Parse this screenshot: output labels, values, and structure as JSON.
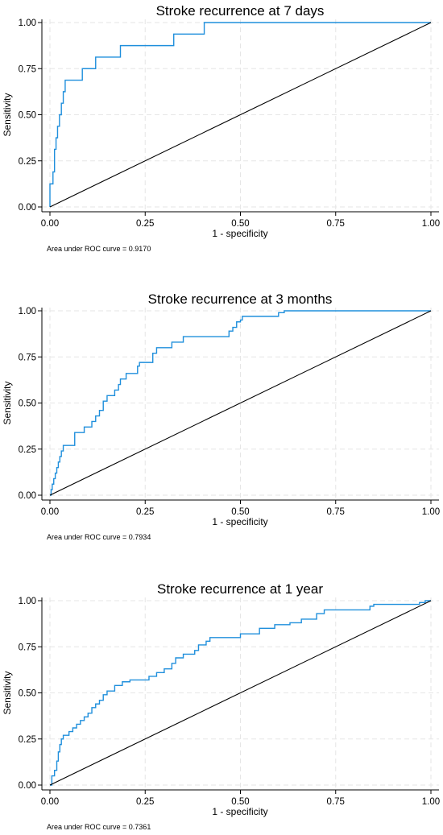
{
  "chart_data": [
    {
      "type": "line",
      "title": "Stroke recurrence at 7 days",
      "xlabel": "1 - specificity",
      "ylabel": "Sensitivity",
      "xlim": [
        0,
        1
      ],
      "ylim": [
        0,
        1
      ],
      "grid": true,
      "xticks": [
        "0.00",
        "0.25",
        "0.50",
        "0.75",
        "1.00"
      ],
      "yticks": [
        "0.00",
        "0.25",
        "0.50",
        "0.75",
        "1.00"
      ],
      "note": "Area under ROC curve = 0.9170",
      "series": [
        {
          "color": "#1f8fdc",
          "x": [
            0,
            0,
            0.008,
            0.008,
            0.012,
            0.012,
            0.016,
            0.016,
            0.02,
            0.02,
            0.025,
            0.025,
            0.03,
            0.03,
            0.035,
            0.035,
            0.04,
            0.04,
            0.085,
            0.085,
            0.12,
            0.12,
            0.185,
            0.185,
            0.325,
            0.325,
            0.405,
            0.405,
            1.0
          ],
          "y": [
            0,
            0.125,
            0.125,
            0.19,
            0.19,
            0.3125,
            0.3125,
            0.375,
            0.375,
            0.4375,
            0.4375,
            0.5,
            0.5,
            0.5625,
            0.5625,
            0.625,
            0.625,
            0.6875,
            0.6875,
            0.75,
            0.75,
            0.8125,
            0.8125,
            0.875,
            0.875,
            0.9375,
            0.9375,
            1.0,
            1.0
          ]
        },
        {
          "color": "#000000",
          "x": [
            0,
            1
          ],
          "y": [
            0,
            1
          ]
        }
      ]
    },
    {
      "type": "line",
      "title": "Stroke recurrence at 3 months",
      "xlabel": "1 - specificity",
      "ylabel": "Sensitivity",
      "xlim": [
        0,
        1
      ],
      "ylim": [
        0,
        1
      ],
      "grid": true,
      "xticks": [
        "0.00",
        "0.25",
        "0.50",
        "0.75",
        "1.00"
      ],
      "yticks": [
        "0.00",
        "0.25",
        "0.50",
        "0.75",
        "1.00"
      ],
      "note": "Area under ROC curve = 0.7934",
      "series": [
        {
          "color": "#1f8fdc",
          "x": [
            0,
            0.003,
            0.003,
            0.006,
            0.006,
            0.01,
            0.01,
            0.014,
            0.014,
            0.018,
            0.018,
            0.022,
            0.022,
            0.026,
            0.026,
            0.03,
            0.03,
            0.035,
            0.035,
            0.065,
            0.065,
            0.09,
            0.09,
            0.11,
            0.11,
            0.12,
            0.12,
            0.13,
            0.13,
            0.14,
            0.14,
            0.15,
            0.15,
            0.17,
            0.17,
            0.18,
            0.18,
            0.185,
            0.185,
            0.2,
            0.2,
            0.22,
            0.22,
            0.23,
            0.23,
            0.235,
            0.235,
            0.27,
            0.27,
            0.28,
            0.28,
            0.32,
            0.32,
            0.34,
            0.34,
            0.35,
            0.35,
            0.47,
            0.47,
            0.48,
            0.48,
            0.49,
            0.49,
            0.5,
            0.5,
            0.505,
            0.505,
            0.6,
            0.6,
            0.615,
            0.615,
            1.0
          ],
          "y": [
            0,
            0,
            0.03,
            0.03,
            0.06,
            0.06,
            0.09,
            0.09,
            0.12,
            0.12,
            0.15,
            0.15,
            0.18,
            0.18,
            0.21,
            0.21,
            0.24,
            0.24,
            0.27,
            0.27,
            0.34,
            0.34,
            0.37,
            0.37,
            0.4,
            0.4,
            0.43,
            0.43,
            0.46,
            0.46,
            0.51,
            0.51,
            0.54,
            0.54,
            0.57,
            0.57,
            0.6,
            0.6,
            0.63,
            0.63,
            0.66,
            0.66,
            0.66,
            0.66,
            0.7,
            0.7,
            0.72,
            0.72,
            0.77,
            0.77,
            0.8,
            0.8,
            0.83,
            0.83,
            0.83,
            0.83,
            0.86,
            0.86,
            0.89,
            0.89,
            0.91,
            0.91,
            0.94,
            0.94,
            0.95,
            0.95,
            0.97,
            0.97,
            0.99,
            0.99,
            1.0,
            1.0
          ]
        },
        {
          "color": "#000000",
          "x": [
            0,
            1
          ],
          "y": [
            0,
            1
          ]
        }
      ]
    },
    {
      "type": "line",
      "title": "Stroke recurrence at 1 year",
      "xlabel": "1 - specificity",
      "ylabel": "Sensitivity",
      "xlim": [
        0,
        1
      ],
      "ylim": [
        0,
        1
      ],
      "grid": true,
      "xticks": [
        "0.00",
        "0.25",
        "0.50",
        "0.75",
        "1.00"
      ],
      "yticks": [
        "0.00",
        "0.25",
        "0.50",
        "0.75",
        "1.00"
      ],
      "note": "Area under ROC curve = 0.7361",
      "series": [
        {
          "color": "#1f8fdc",
          "x": [
            0,
            0.005,
            0.005,
            0.012,
            0.012,
            0.018,
            0.018,
            0.022,
            0.022,
            0.026,
            0.026,
            0.03,
            0.03,
            0.035,
            0.035,
            0.05,
            0.05,
            0.06,
            0.06,
            0.07,
            0.07,
            0.08,
            0.08,
            0.09,
            0.09,
            0.1,
            0.1,
            0.11,
            0.11,
            0.12,
            0.12,
            0.13,
            0.13,
            0.14,
            0.14,
            0.15,
            0.15,
            0.17,
            0.17,
            0.19,
            0.19,
            0.21,
            0.21,
            0.26,
            0.26,
            0.28,
            0.28,
            0.3,
            0.3,
            0.32,
            0.32,
            0.33,
            0.33,
            0.35,
            0.35,
            0.38,
            0.38,
            0.39,
            0.39,
            0.41,
            0.41,
            0.42,
            0.42,
            0.5,
            0.5,
            0.55,
            0.55,
            0.59,
            0.59,
            0.63,
            0.63,
            0.66,
            0.66,
            0.7,
            0.7,
            0.72,
            0.72,
            0.84,
            0.84,
            0.85,
            0.85,
            0.97,
            0.97,
            0.985,
            0.985,
            1.0
          ],
          "y": [
            0,
            0,
            0.05,
            0.05,
            0.08,
            0.08,
            0.13,
            0.13,
            0.18,
            0.18,
            0.22,
            0.22,
            0.25,
            0.25,
            0.27,
            0.27,
            0.29,
            0.29,
            0.31,
            0.31,
            0.33,
            0.33,
            0.35,
            0.35,
            0.37,
            0.37,
            0.39,
            0.39,
            0.42,
            0.42,
            0.44,
            0.44,
            0.46,
            0.46,
            0.49,
            0.49,
            0.51,
            0.51,
            0.54,
            0.54,
            0.56,
            0.56,
            0.57,
            0.57,
            0.59,
            0.59,
            0.61,
            0.61,
            0.63,
            0.63,
            0.66,
            0.66,
            0.69,
            0.69,
            0.71,
            0.71,
            0.73,
            0.73,
            0.76,
            0.76,
            0.78,
            0.78,
            0.8,
            0.8,
            0.82,
            0.82,
            0.85,
            0.85,
            0.87,
            0.87,
            0.88,
            0.88,
            0.9,
            0.9,
            0.93,
            0.93,
            0.95,
            0.95,
            0.97,
            0.97,
            0.98,
            0.98,
            0.99,
            0.99,
            1.0,
            1.0
          ]
        },
        {
          "color": "#000000",
          "x": [
            0,
            1
          ],
          "y": [
            0,
            1
          ]
        }
      ]
    }
  ]
}
